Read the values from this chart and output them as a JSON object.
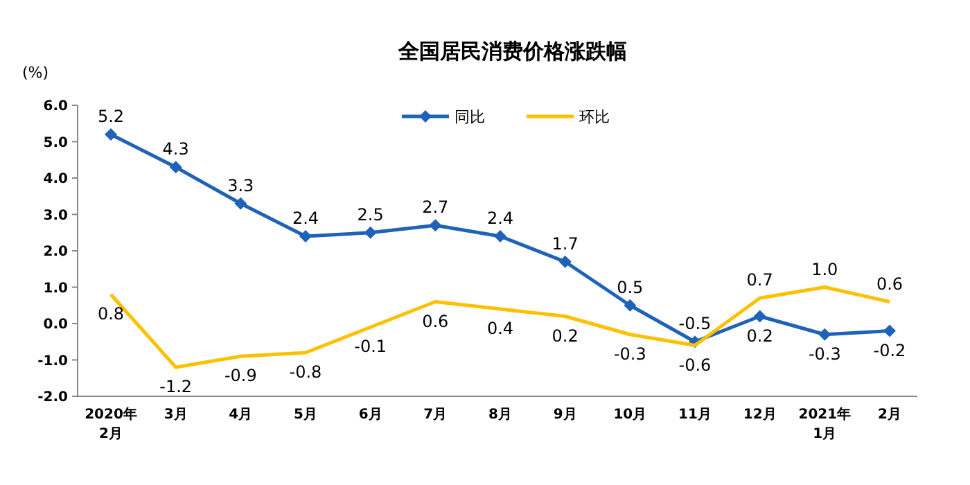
{
  "chart_data": {
    "type": "line",
    "title": "全国居民消费价格涨跌幅",
    "ylabel": "(%)",
    "categories": [
      "2020年\n2月",
      "3月",
      "4月",
      "5月",
      "6月",
      "7月",
      "8月",
      "9月",
      "10月",
      "11月",
      "12月",
      "2021年\n1月",
      "2月"
    ],
    "series": [
      {
        "name": "同比",
        "color": "#1f62b8",
        "marker": "diamond",
        "values": [
          5.2,
          4.3,
          3.3,
          2.4,
          2.5,
          2.7,
          2.4,
          1.7,
          0.5,
          -0.5,
          0.2,
          -0.3,
          -0.2
        ],
        "value_labels": [
          "5.2",
          "4.3",
          "3.3",
          "2.4",
          "2.5",
          "2.7",
          "2.4",
          "1.7",
          "0.5",
          "-0.5",
          "0.2",
          "-0.3",
          "-0.2"
        ]
      },
      {
        "name": "环比",
        "color": "#ffc000",
        "marker": "none",
        "values": [
          0.8,
          -1.2,
          -0.9,
          -0.8,
          -0.1,
          0.6,
          0.4,
          0.2,
          -0.3,
          -0.6,
          0.7,
          1.0,
          0.6
        ],
        "value_labels": [
          "0.8",
          "-1.2",
          "-0.9",
          "-0.8",
          "-0.1",
          "0.6",
          "0.4",
          "0.2",
          "-0.3",
          "-0.6",
          "0.7",
          "1.0",
          "0.6"
        ]
      }
    ],
    "ylim": [
      -2,
      6
    ],
    "yticks": [
      {
        "value": -2,
        "label": "-2.0"
      },
      {
        "value": -1,
        "label": "-1.0"
      },
      {
        "value": 0,
        "label": "0.0"
      },
      {
        "value": 1,
        "label": "1.0"
      },
      {
        "value": 2,
        "label": "2.0"
      },
      {
        "value": 3,
        "label": "3.0"
      },
      {
        "value": 4,
        "label": "4.0"
      },
      {
        "value": 5,
        "label": "5.0"
      },
      {
        "value": 6,
        "label": "6.0"
      }
    ],
    "legend": "top",
    "line_style": "solid",
    "grid": false
  }
}
